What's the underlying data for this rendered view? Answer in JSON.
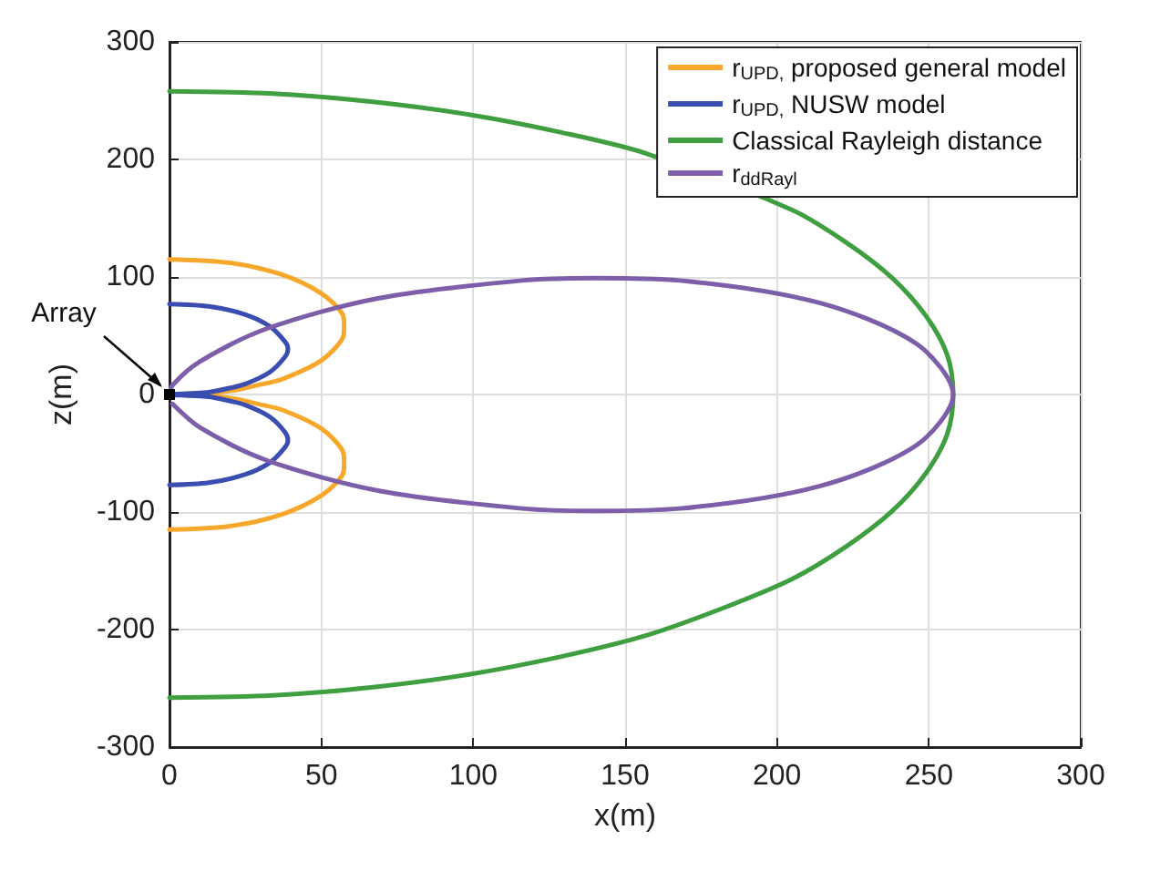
{
  "chart_data": {
    "type": "line",
    "xlabel": "x(m)",
    "ylabel": "z(m)",
    "xlim": [
      0,
      300
    ],
    "xticks": [
      0,
      50,
      100,
      150,
      200,
      250,
      300
    ],
    "ylim": [
      -300,
      300
    ],
    "yticks": [
      -300,
      -200,
      -100,
      0,
      100,
      200,
      300
    ],
    "grid": true,
    "legend": "top right",
    "marker": "none",
    "line_style": "solid",
    "annotations": [
      {
        "text": "Array",
        "x": 0,
        "y": 0
      }
    ],
    "series": [
      {
        "name": "r$_{UPD,}$ proposed general model",
        "color": "#f7a72a",
        "x": [
          0,
          20,
          37,
          50,
          57,
          57.5,
          57,
          50,
          37,
          29,
          20,
          10,
          0,
          10,
          20,
          29,
          37,
          50,
          57,
          57.5,
          57,
          50,
          37,
          20,
          0
        ],
        "values": [
          115,
          112,
          102,
          86,
          68,
          58,
          48,
          29,
          13,
          8,
          3,
          1,
          0,
          -1,
          -3,
          -8,
          -13,
          -29,
          -48,
          -58,
          -68,
          -86,
          -102,
          -112,
          -115
        ]
      },
      {
        "name": "r$_{UPD,}$ NUSW model",
        "color": "#3a4db0",
        "x": [
          0,
          13,
          25,
          33,
          38,
          39,
          38,
          33,
          25,
          19,
          13,
          7,
          0,
          7,
          13,
          19,
          25,
          33,
          38,
          39,
          38,
          33,
          25,
          13,
          0
        ],
        "values": [
          77,
          75,
          68,
          58,
          45,
          39,
          32,
          19,
          9,
          5,
          2,
          1,
          0,
          -1,
          -2,
          -5,
          -9,
          -19,
          -32,
          -39,
          -45,
          -58,
          -68,
          -75,
          -77
        ]
      },
      {
        "name": "Classical Rayleigh distance",
        "color": "#3f9e3f",
        "x": [
          0,
          34,
          67,
          99,
          129,
          157,
          182,
          205,
          223,
          238,
          249,
          256,
          258,
          256,
          249,
          238,
          223,
          205,
          182,
          157,
          129,
          99,
          67,
          34,
          0
        ],
        "values": [
          258,
          256,
          249,
          238,
          223,
          205,
          null,
          157,
          129,
          99,
          67,
          34,
          0,
          -34,
          -67,
          -99,
          -129,
          -157,
          -182,
          -205,
          -223,
          -238,
          -249,
          -256,
          -258
        ]
      },
      {
        "name": "r$_{ddRayl}$",
        "color": "#7d5ea8",
        "x": [
          0,
          1,
          10,
          32,
          69,
          116,
          140,
          168,
          214,
          246,
          258,
          246,
          214,
          168,
          140,
          116,
          69,
          32,
          10,
          1
        ],
        "values": [
          0,
          8,
          28,
          56,
          82,
          97,
          99,
          97,
          78,
          43,
          0,
          -43,
          -78,
          -97,
          -99,
          -97,
          -82,
          -56,
          -28,
          -8
        ]
      }
    ]
  }
}
